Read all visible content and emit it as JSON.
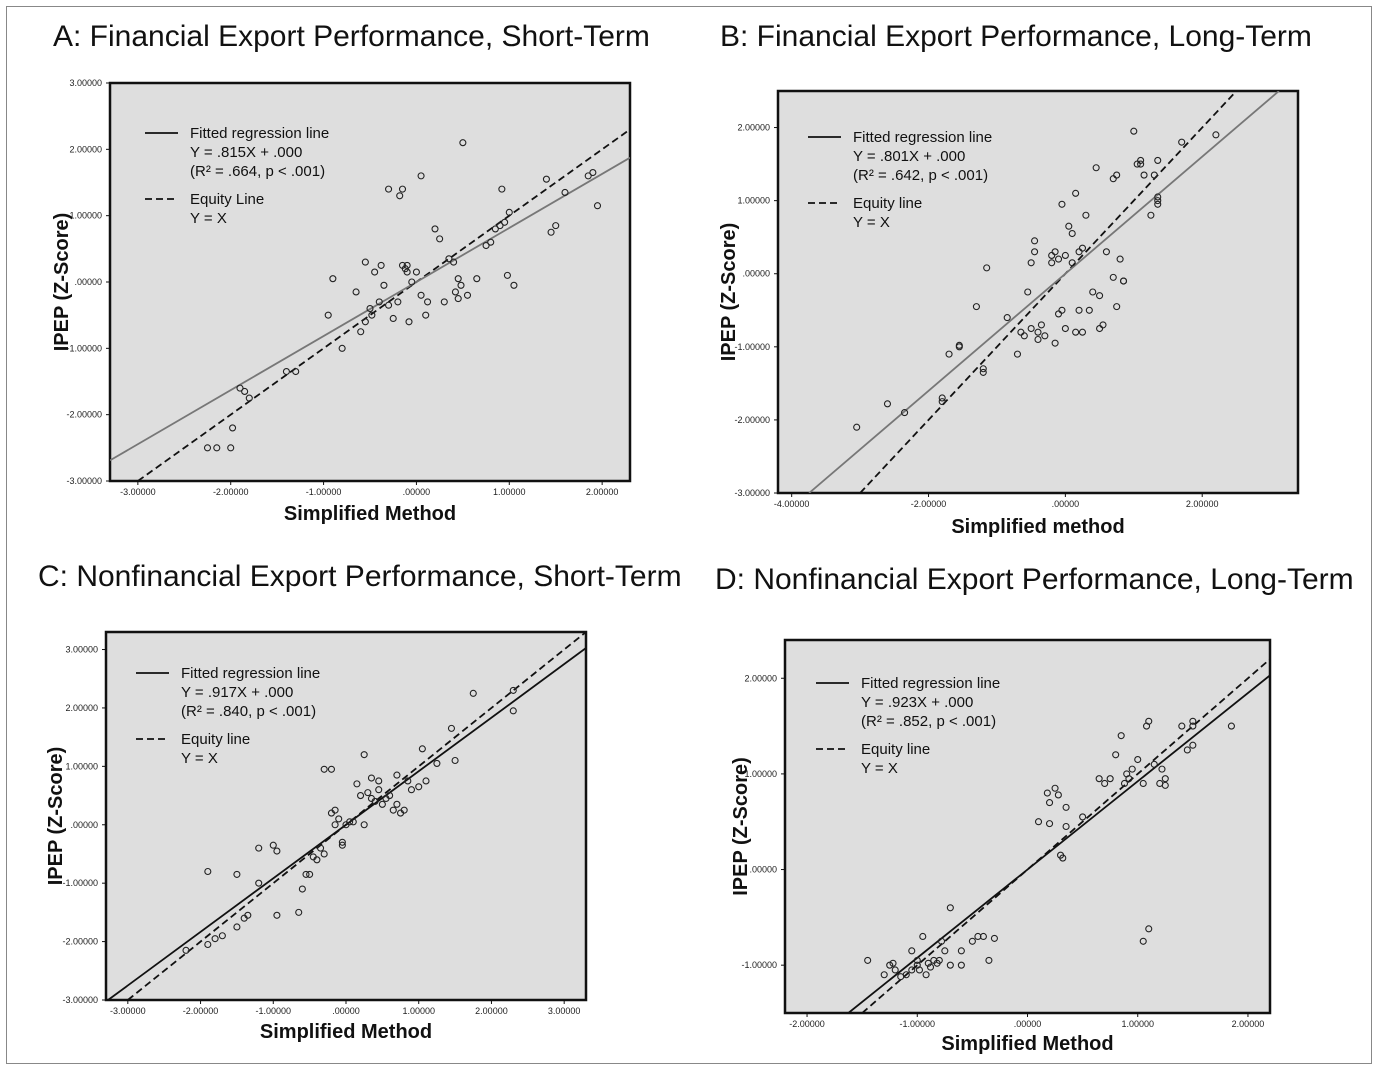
{
  "chart_data": [
    {
      "type": "scatter",
      "title": "A: Financial Export Performance, Short-Term",
      "xlabel": "Simplified Method",
      "ylabel": "IPEP (Z-Score)",
      "xlim": [
        -3.3,
        2.3
      ],
      "ylim": [
        -3.0,
        3.0
      ],
      "xticks": [
        "-3.00000",
        "-2.00000",
        "-1.00000",
        ".00000",
        "1.00000",
        "2.00000"
      ],
      "xtick_values": [
        -3,
        -2,
        -1,
        0,
        1,
        2
      ],
      "yticks": [
        "-3.00000",
        "-2.00000",
        "-1.00000",
        ".00000",
        "1.00000",
        "2.00000",
        "3.00000"
      ],
      "ytick_values": [
        -3,
        -2,
        -1,
        0,
        1,
        2,
        3
      ],
      "legend": {
        "fitted_label": "Fitted regression line",
        "fitted_eq": "Y = .815X + .000",
        "fitted_stats": "(R² = .664, p < .001)",
        "equity_label": "Equity Line",
        "equity_eq": "Y = X"
      },
      "fitted": {
        "slope": 0.815,
        "intercept": 0.0,
        "r2": 0.664
      },
      "equity": {
        "slope": 1.0,
        "intercept": 0.0
      },
      "fit_color": "#777777",
      "points": [
        [
          -2.25,
          -2.5
        ],
        [
          -2.15,
          -2.5
        ],
        [
          -2.0,
          -2.5
        ],
        [
          -1.98,
          -2.2
        ],
        [
          -1.9,
          -1.6
        ],
        [
          -1.85,
          -1.65
        ],
        [
          -1.8,
          -1.75
        ],
        [
          -1.4,
          -1.35
        ],
        [
          -1.3,
          -1.35
        ],
        [
          -0.95,
          -0.5
        ],
        [
          -0.9,
          0.05
        ],
        [
          -0.8,
          -1.0
        ],
        [
          -0.65,
          -0.15
        ],
        [
          -0.6,
          -0.75
        ],
        [
          -0.55,
          -0.6
        ],
        [
          -0.55,
          0.3
        ],
        [
          -0.5,
          -0.4
        ],
        [
          -0.48,
          -0.5
        ],
        [
          -0.45,
          0.15
        ],
        [
          -0.4,
          -0.3
        ],
        [
          -0.38,
          0.25
        ],
        [
          -0.35,
          -0.05
        ],
        [
          -0.3,
          -0.35
        ],
        [
          -0.3,
          1.4
        ],
        [
          -0.25,
          -0.55
        ],
        [
          -0.2,
          -0.3
        ],
        [
          -0.18,
          1.3
        ],
        [
          -0.15,
          1.4
        ],
        [
          -0.15,
          0.25
        ],
        [
          -0.12,
          0.2
        ],
        [
          -0.1,
          0.15
        ],
        [
          -0.1,
          0.25
        ],
        [
          -0.08,
          -0.6
        ],
        [
          -0.05,
          0.0
        ],
        [
          0.0,
          0.15
        ],
        [
          0.05,
          1.6
        ],
        [
          0.05,
          -0.2
        ],
        [
          0.1,
          -0.5
        ],
        [
          0.12,
          -0.3
        ],
        [
          0.2,
          0.8
        ],
        [
          0.25,
          0.65
        ],
        [
          0.3,
          -0.3
        ],
        [
          0.35,
          0.35
        ],
        [
          0.4,
          0.3
        ],
        [
          0.42,
          -0.15
        ],
        [
          0.45,
          -0.25
        ],
        [
          0.45,
          0.05
        ],
        [
          0.48,
          -0.05
        ],
        [
          0.5,
          2.1
        ],
        [
          0.55,
          -0.2
        ],
        [
          0.65,
          0.05
        ],
        [
          0.75,
          0.55
        ],
        [
          0.8,
          0.6
        ],
        [
          0.85,
          0.8
        ],
        [
          0.9,
          0.85
        ],
        [
          0.92,
          1.4
        ],
        [
          0.95,
          0.9
        ],
        [
          0.98,
          0.1
        ],
        [
          1.0,
          1.05
        ],
        [
          1.05,
          -0.05
        ],
        [
          1.4,
          1.55
        ],
        [
          1.45,
          0.75
        ],
        [
          1.5,
          0.85
        ],
        [
          1.6,
          1.35
        ],
        [
          1.85,
          1.6
        ],
        [
          1.9,
          1.65
        ],
        [
          1.95,
          1.15
        ]
      ]
    },
    {
      "type": "scatter",
      "title": "B: Financial Export Performance, Long-Term",
      "xlabel": "Simplified method",
      "ylabel": "IPEP (Z-Score)",
      "xlim": [
        -4.2,
        3.4
      ],
      "ylim": [
        -3.0,
        2.5
      ],
      "xticks": [
        "-4.00000",
        "-2.00000",
        ".00000",
        "2.00000"
      ],
      "xtick_values": [
        -4,
        -2,
        0,
        2
      ],
      "yticks": [
        "-3.00000",
        "-2.00000",
        "-1.00000",
        ".00000",
        "1.00000",
        "2.00000"
      ],
      "ytick_values": [
        -3,
        -2,
        -1,
        0,
        1,
        2
      ],
      "legend": {
        "fitted_label": "Fitted regression line",
        "fitted_eq": "Y = .801X + .000",
        "fitted_stats": "(R² = .642, p < .001)",
        "equity_label": "Equity line",
        "equity_eq": "Y = X"
      },
      "fitted": {
        "slope": 0.801,
        "intercept": 0.0,
        "r2": 0.642
      },
      "equity": {
        "slope": 1.0,
        "intercept": 0.0
      },
      "fit_color": "#777777",
      "points": [
        [
          -3.05,
          -2.1
        ],
        [
          -2.6,
          -1.78
        ],
        [
          -2.35,
          -1.9
        ],
        [
          -1.8,
          -1.7
        ],
        [
          -1.8,
          -1.75
        ],
        [
          -1.7,
          -1.1
        ],
        [
          -1.55,
          -0.98
        ],
        [
          -1.55,
          -1.0
        ],
        [
          -1.3,
          -0.45
        ],
        [
          -1.2,
          -1.3
        ],
        [
          -1.2,
          -1.35
        ],
        [
          -1.15,
          0.08
        ],
        [
          -0.85,
          -0.6
        ],
        [
          -0.7,
          -1.1
        ],
        [
          -0.65,
          -0.8
        ],
        [
          -0.6,
          -0.85
        ],
        [
          -0.55,
          -0.25
        ],
        [
          -0.5,
          0.15
        ],
        [
          -0.5,
          -0.75
        ],
        [
          -0.45,
          0.3
        ],
        [
          -0.45,
          0.45
        ],
        [
          -0.4,
          -0.8
        ],
        [
          -0.4,
          -0.9
        ],
        [
          -0.35,
          -0.7
        ],
        [
          -0.3,
          -0.85
        ],
        [
          -0.2,
          0.25
        ],
        [
          -0.2,
          0.15
        ],
        [
          -0.15,
          0.3
        ],
        [
          -0.15,
          -0.95
        ],
        [
          -0.1,
          0.2
        ],
        [
          -0.1,
          -0.55
        ],
        [
          -0.05,
          0.95
        ],
        [
          -0.05,
          -0.5
        ],
        [
          0.0,
          0.25
        ],
        [
          0.0,
          -0.75
        ],
        [
          0.05,
          0.65
        ],
        [
          0.1,
          0.15
        ],
        [
          0.1,
          0.55
        ],
        [
          0.15,
          1.1
        ],
        [
          0.15,
          -0.8
        ],
        [
          0.2,
          0.3
        ],
        [
          0.2,
          -0.5
        ],
        [
          0.25,
          0.35
        ],
        [
          0.25,
          -0.8
        ],
        [
          0.3,
          0.8
        ],
        [
          0.35,
          -0.5
        ],
        [
          0.4,
          -0.25
        ],
        [
          0.45,
          1.45
        ],
        [
          0.5,
          -0.3
        ],
        [
          0.5,
          -0.75
        ],
        [
          0.55,
          -0.7
        ],
        [
          0.6,
          0.3
        ],
        [
          0.7,
          1.3
        ],
        [
          0.7,
          -0.05
        ],
        [
          0.75,
          1.35
        ],
        [
          0.75,
          -0.45
        ],
        [
          0.8,
          0.2
        ],
        [
          0.85,
          -0.1
        ],
        [
          0.85,
          -0.1
        ],
        [
          1.0,
          1.95
        ],
        [
          1.05,
          1.5
        ],
        [
          1.1,
          1.5
        ],
        [
          1.1,
          1.55
        ],
        [
          1.15,
          1.35
        ],
        [
          1.25,
          0.8
        ],
        [
          1.3,
          1.35
        ],
        [
          1.35,
          1.05
        ],
        [
          1.35,
          1.0
        ],
        [
          1.35,
          0.95
        ],
        [
          1.35,
          1.55
        ],
        [
          1.7,
          1.8
        ],
        [
          2.2,
          1.9
        ]
      ]
    },
    {
      "type": "scatter",
      "title": "C: Nonfinancial Export Performance, Short-Term",
      "xlabel": "Simplified Method",
      "ylabel": "IPEP (Z-Score)",
      "xlim": [
        -3.3,
        3.3
      ],
      "ylim": [
        -3.0,
        3.3
      ],
      "xticks": [
        "-3.00000",
        "-2.00000",
        "-1.00000",
        ".00000",
        "1.00000",
        "2.00000",
        "3.00000"
      ],
      "xtick_values": [
        -3,
        -2,
        -1,
        0,
        1,
        2,
        3
      ],
      "yticks": [
        "-3.00000",
        "-2.00000",
        "-1.00000",
        ".00000",
        "1.00000",
        "2.00000",
        "3.00000"
      ],
      "ytick_values": [
        -3,
        -2,
        -1,
        0,
        1,
        2,
        3
      ],
      "legend": {
        "fitted_label": "Fitted regression line",
        "fitted_eq": "Y = .917X + .000",
        "fitted_stats": "(R² = .840, p < .001)",
        "equity_label": "Equity line",
        "equity_eq": "Y = X"
      },
      "fitted": {
        "slope": 0.917,
        "intercept": 0.0,
        "r2": 0.84
      },
      "equity": {
        "slope": 1.0,
        "intercept": 0.0
      },
      "fit_color": "#111111",
      "points": [
        [
          -2.2,
          -2.15
        ],
        [
          -1.9,
          -2.05
        ],
        [
          -1.8,
          -1.95
        ],
        [
          -1.7,
          -1.9
        ],
        [
          -1.9,
          -0.8
        ],
        [
          -1.5,
          -1.75
        ],
        [
          -1.5,
          -0.85
        ],
        [
          -1.4,
          -1.6
        ],
        [
          -1.35,
          -1.55
        ],
        [
          -1.2,
          -1.0
        ],
        [
          -1.2,
          -0.4
        ],
        [
          -1.0,
          -0.35
        ],
        [
          -0.95,
          -0.45
        ],
        [
          -0.95,
          -1.55
        ],
        [
          -0.65,
          -1.5
        ],
        [
          -0.6,
          -1.1
        ],
        [
          -0.55,
          -0.85
        ],
        [
          -0.5,
          -0.85
        ],
        [
          -0.45,
          -0.55
        ],
        [
          -0.4,
          -0.6
        ],
        [
          -0.35,
          -0.4
        ],
        [
          -0.3,
          -0.5
        ],
        [
          -0.3,
          0.95
        ],
        [
          -0.2,
          0.95
        ],
        [
          -0.2,
          0.2
        ],
        [
          -0.15,
          0.0
        ],
        [
          -0.15,
          0.25
        ],
        [
          -0.1,
          0.1
        ],
        [
          -0.05,
          -0.35
        ],
        [
          -0.05,
          -0.3
        ],
        [
          0.0,
          0.0
        ],
        [
          0.05,
          0.05
        ],
        [
          0.1,
          0.05
        ],
        [
          0.15,
          0.7
        ],
        [
          0.2,
          0.5
        ],
        [
          0.25,
          0.0
        ],
        [
          0.25,
          1.2
        ],
        [
          0.3,
          0.55
        ],
        [
          0.35,
          0.45
        ],
        [
          0.35,
          0.8
        ],
        [
          0.4,
          0.4
        ],
        [
          0.45,
          0.6
        ],
        [
          0.45,
          0.75
        ],
        [
          0.5,
          0.35
        ],
        [
          0.55,
          0.45
        ],
        [
          0.6,
          0.5
        ],
        [
          0.65,
          0.25
        ],
        [
          0.7,
          0.85
        ],
        [
          0.7,
          0.35
        ],
        [
          0.75,
          0.2
        ],
        [
          0.8,
          0.25
        ],
        [
          0.85,
          0.75
        ],
        [
          0.9,
          0.6
        ],
        [
          1.0,
          0.65
        ],
        [
          1.05,
          1.3
        ],
        [
          1.1,
          0.75
        ],
        [
          1.25,
          1.05
        ],
        [
          1.45,
          1.65
        ],
        [
          1.5,
          1.1
        ],
        [
          1.75,
          2.25
        ],
        [
          2.3,
          2.3
        ],
        [
          2.3,
          1.95
        ]
      ]
    },
    {
      "type": "scatter",
      "title": "D: Nonfinancial Export Performance, Long-Term",
      "xlabel": "Simplified Method",
      "ylabel": "IPEP (Z-Score)",
      "xlim": [
        -2.2,
        2.2
      ],
      "ylim": [
        -1.5,
        2.4
      ],
      "xticks": [
        "-2.00000",
        "-1.00000",
        ".00000",
        "1.00000",
        "2.00000"
      ],
      "xtick_values": [
        -2,
        -1,
        0,
        1,
        2
      ],
      "yticks": [
        "-1.00000",
        ".00000",
        "1.00000",
        "2.00000"
      ],
      "ytick_values": [
        -1,
        0,
        1,
        2
      ],
      "legend": {
        "fitted_label": "Fitted regression line",
        "fitted_eq": "Y = .923X + .000",
        "fitted_stats": "(R² = .852, p < .001)",
        "equity_label": "Equity line",
        "equity_eq": "Y = X"
      },
      "fitted": {
        "slope": 0.923,
        "intercept": 0.0,
        "r2": 0.852
      },
      "equity": {
        "slope": 1.0,
        "intercept": 0.0
      },
      "fit_color": "#111111",
      "points": [
        [
          -1.45,
          -0.95
        ],
        [
          -1.3,
          -1.1
        ],
        [
          -1.25,
          -1.0
        ],
        [
          -1.22,
          -0.98
        ],
        [
          -1.2,
          -1.05
        ],
        [
          -1.15,
          -1.12
        ],
        [
          -1.1,
          -1.1
        ],
        [
          -1.05,
          -1.05
        ],
        [
          -1.05,
          -0.85
        ],
        [
          -1.0,
          -0.95
        ],
        [
          -1.0,
          -1.0
        ],
        [
          -0.98,
          -1.05
        ],
        [
          -0.95,
          -0.7
        ],
        [
          -0.92,
          -1.1
        ],
        [
          -0.9,
          -0.98
        ],
        [
          -0.88,
          -1.02
        ],
        [
          -0.85,
          -0.95
        ],
        [
          -0.82,
          -0.98
        ],
        [
          -0.8,
          -0.95
        ],
        [
          -0.78,
          -0.75
        ],
        [
          -0.75,
          -0.85
        ],
        [
          -0.7,
          -0.4
        ],
        [
          -0.7,
          -1.0
        ],
        [
          -0.6,
          -0.85
        ],
        [
          -0.6,
          -1.0
        ],
        [
          -0.5,
          -0.75
        ],
        [
          -0.45,
          -0.7
        ],
        [
          -0.4,
          -0.7
        ],
        [
          -0.35,
          -0.95
        ],
        [
          -0.3,
          -0.72
        ],
        [
          0.1,
          0.5
        ],
        [
          0.18,
          0.8
        ],
        [
          0.2,
          0.7
        ],
        [
          0.2,
          0.48
        ],
        [
          0.25,
          0.85
        ],
        [
          0.28,
          0.78
        ],
        [
          0.3,
          0.15
        ],
        [
          0.32,
          0.12
        ],
        [
          0.35,
          0.65
        ],
        [
          0.35,
          0.45
        ],
        [
          0.5,
          0.55
        ],
        [
          0.65,
          0.95
        ],
        [
          0.7,
          0.9
        ],
        [
          0.75,
          0.95
        ],
        [
          0.8,
          1.2
        ],
        [
          0.85,
          1.4
        ],
        [
          0.88,
          0.9
        ],
        [
          0.9,
          1.0
        ],
        [
          0.92,
          0.95
        ],
        [
          0.95,
          1.05
        ],
        [
          1.0,
          1.15
        ],
        [
          1.05,
          -0.75
        ],
        [
          1.05,
          0.9
        ],
        [
          1.08,
          1.5
        ],
        [
          1.1,
          1.55
        ],
        [
          1.1,
          -0.62
        ],
        [
          1.15,
          1.1
        ],
        [
          1.2,
          0.9
        ],
        [
          1.22,
          1.05
        ],
        [
          1.25,
          0.95
        ],
        [
          1.25,
          0.88
        ],
        [
          1.4,
          1.5
        ],
        [
          1.45,
          1.25
        ],
        [
          1.5,
          1.5
        ],
        [
          1.5,
          1.55
        ],
        [
          1.5,
          1.3
        ],
        [
          1.85,
          1.5
        ]
      ]
    }
  ]
}
